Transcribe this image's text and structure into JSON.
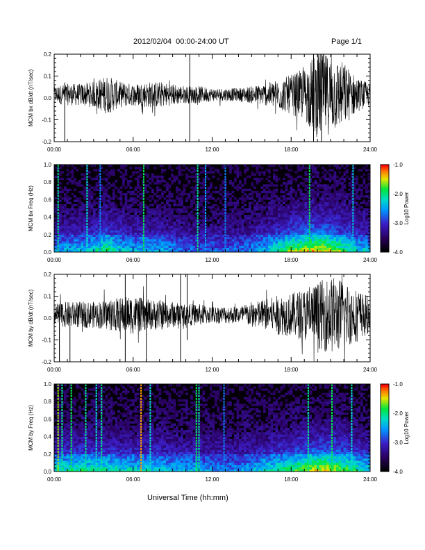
{
  "header": {
    "date_range": "2012/02/04  00:00-24:00 UT",
    "page": "Page 1/1"
  },
  "xaxis": {
    "title": "Universal Time (hh:mm)",
    "ticks": [
      "00:00",
      "06:00",
      "12:00",
      "18:00",
      "24:00"
    ]
  },
  "chart_data": [
    {
      "type": "line",
      "ylabel": "MCM bx dB/dt (nT/sec)",
      "xlim": [
        0,
        24
      ],
      "ylim": [
        -0.2,
        0.2
      ],
      "yticks": [
        "0.2",
        "0.1",
        "0.0",
        "-0.1",
        "-0.2"
      ],
      "envelope_x": [
        0,
        1,
        2,
        3,
        4,
        5,
        6,
        7,
        8,
        9,
        10,
        11,
        12,
        13,
        14,
        15,
        16,
        17,
        18,
        19,
        20,
        21,
        22,
        23,
        24
      ],
      "envelope_amp": [
        0.04,
        0.05,
        0.05,
        0.06,
        0.09,
        0.06,
        0.05,
        0.06,
        0.06,
        0.05,
        0.04,
        0.04,
        0.03,
        0.03,
        0.03,
        0.04,
        0.05,
        0.07,
        0.09,
        0.12,
        0.2,
        0.18,
        0.15,
        0.08,
        0.05
      ],
      "spikes": [
        {
          "x": 0.8,
          "ylo": -0.2,
          "yhi": 0.07
        },
        {
          "x": 10.3,
          "ylo": -0.2,
          "yhi": 0.2
        },
        {
          "x": 19.7,
          "ylo": -0.2,
          "yhi": 0.2
        },
        {
          "x": 20.3,
          "ylo": -0.2,
          "yhi": 0.2
        }
      ]
    },
    {
      "type": "heatmap",
      "ylabel": "MCM bx Freq (Hz)",
      "xlim": [
        0,
        24
      ],
      "ylim": [
        0,
        1.0
      ],
      "yticks": [
        "1.0",
        "0.8",
        "0.6",
        "0.4",
        "0.2",
        "0.0"
      ],
      "colorbar": {
        "label": "Log10 Power",
        "range": [
          -4.0,
          -1.0
        ],
        "ticks": [
          "-1.0",
          "-2.0",
          "-3.0",
          "-4.0"
        ]
      },
      "streaks": [
        {
          "x": 0.3,
          "level": 0.55
        },
        {
          "x": 2.5,
          "level": 0.5
        },
        {
          "x": 3.5,
          "level": 0.35
        },
        {
          "x": 6.8,
          "level": 0.6
        },
        {
          "x": 10.9,
          "level": 0.55
        },
        {
          "x": 11.5,
          "level": 0.4
        },
        {
          "x": 13.0,
          "level": 0.35
        },
        {
          "x": 19.4,
          "level": 0.6
        },
        {
          "x": 22.7,
          "level": 0.45
        }
      ],
      "activity": [
        0.3,
        0.35,
        0.35,
        0.4,
        0.5,
        0.4,
        0.35,
        0.35,
        0.35,
        0.3,
        0.25,
        0.25,
        0.25,
        0.25,
        0.25,
        0.3,
        0.35,
        0.45,
        0.55,
        0.6,
        0.65,
        0.6,
        0.5,
        0.4,
        0.35
      ]
    },
    {
      "type": "line",
      "ylabel": "MCM by dB/dt (nT/sec)",
      "xlim": [
        0,
        24
      ],
      "ylim": [
        -0.2,
        0.2
      ],
      "yticks": [
        "0.2",
        "0.1",
        "0.0",
        "-0.1",
        "-0.2"
      ],
      "envelope_x": [
        0,
        1,
        2,
        3,
        4,
        5,
        6,
        7,
        8,
        9,
        10,
        11,
        12,
        13,
        14,
        15,
        16,
        17,
        18,
        19,
        20,
        21,
        22,
        23,
        24
      ],
      "envelope_amp": [
        0.05,
        0.06,
        0.06,
        0.06,
        0.07,
        0.08,
        0.09,
        0.07,
        0.07,
        0.06,
        0.05,
        0.05,
        0.04,
        0.04,
        0.04,
        0.06,
        0.07,
        0.09,
        0.1,
        0.12,
        0.15,
        0.18,
        0.16,
        0.12,
        0.08
      ],
      "spikes": [
        {
          "x": 0.4,
          "ylo": -0.2,
          "yhi": 0.05
        },
        {
          "x": 1.2,
          "ylo": -0.2,
          "yhi": 0.02
        },
        {
          "x": 5.4,
          "ylo": -0.2,
          "yhi": 0.2
        },
        {
          "x": 7.0,
          "ylo": -0.2,
          "yhi": 0.2
        },
        {
          "x": 9.6,
          "ylo": -0.2,
          "yhi": 0.2
        },
        {
          "x": 10.1,
          "ylo": -0.1,
          "yhi": 0.2
        }
      ]
    },
    {
      "type": "heatmap",
      "ylabel": "MCM by Freq (Hz)",
      "xlim": [
        0,
        24
      ],
      "ylim": [
        0,
        1.0
      ],
      "yticks": [
        "1.0",
        "0.8",
        "0.6",
        "0.4",
        "0.2",
        "0.0"
      ],
      "colorbar": {
        "label": "Log10 Power",
        "range": [
          -4.0,
          -1.0
        ],
        "ticks": [
          "-1.0",
          "-2.0",
          "-3.0",
          "-4.0"
        ]
      },
      "streaks": [
        {
          "x": 0.3,
          "level": 0.7
        },
        {
          "x": 0.6,
          "level": 0.55
        },
        {
          "x": 1.3,
          "level": 0.6
        },
        {
          "x": 2.4,
          "level": 0.55
        },
        {
          "x": 3.2,
          "level": 0.5
        },
        {
          "x": 3.6,
          "level": 0.55
        },
        {
          "x": 6.6,
          "level": 0.8
        },
        {
          "x": 7.3,
          "level": 0.5
        },
        {
          "x": 10.8,
          "level": 0.6
        },
        {
          "x": 11.0,
          "level": 0.55
        },
        {
          "x": 12.9,
          "level": 0.35
        },
        {
          "x": 19.3,
          "level": 0.55
        },
        {
          "x": 21.1,
          "level": 0.6
        },
        {
          "x": 22.6,
          "level": 0.5
        }
      ],
      "activity": [
        0.4,
        0.45,
        0.45,
        0.45,
        0.45,
        0.4,
        0.4,
        0.4,
        0.4,
        0.35,
        0.35,
        0.35,
        0.3,
        0.3,
        0.3,
        0.35,
        0.4,
        0.45,
        0.5,
        0.55,
        0.6,
        0.6,
        0.55,
        0.45,
        0.4
      ]
    }
  ]
}
